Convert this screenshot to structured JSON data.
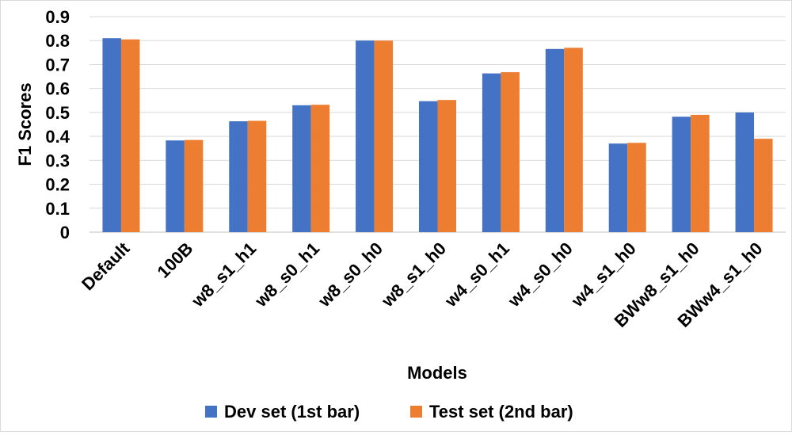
{
  "chart_data": {
    "type": "bar",
    "title": "",
    "xlabel": "Models",
    "ylabel": "F1 Scores",
    "ylim": [
      0,
      0.9
    ],
    "yticks": [
      "0",
      "0.1",
      "0.2",
      "0.3",
      "0.4",
      "0.5",
      "0.6",
      "0.7",
      "0.8",
      "0.9"
    ],
    "grid": true,
    "legend_position": "bottom",
    "categories": [
      "Default",
      "100B",
      "w8_s1_h1",
      "w8_s0_h1",
      "w8_s0_h0",
      "w8_s1_h0",
      "w4_s0_h1",
      "w4_s0_h0",
      "w4_s1_h0",
      "BWw8_s1_h0",
      "BWw4_s1_h0"
    ],
    "series": [
      {
        "name": "Dev set (1st bar)",
        "color": "#4472C4",
        "values": [
          0.81,
          0.383,
          0.463,
          0.53,
          0.8,
          0.547,
          0.663,
          0.765,
          0.37,
          0.482,
          0.5
        ]
      },
      {
        "name": "Test set (2nd bar)",
        "color": "#ED7D31",
        "values": [
          0.805,
          0.385,
          0.465,
          0.532,
          0.8,
          0.552,
          0.668,
          0.77,
          0.373,
          0.49,
          0.39
        ]
      }
    ]
  }
}
